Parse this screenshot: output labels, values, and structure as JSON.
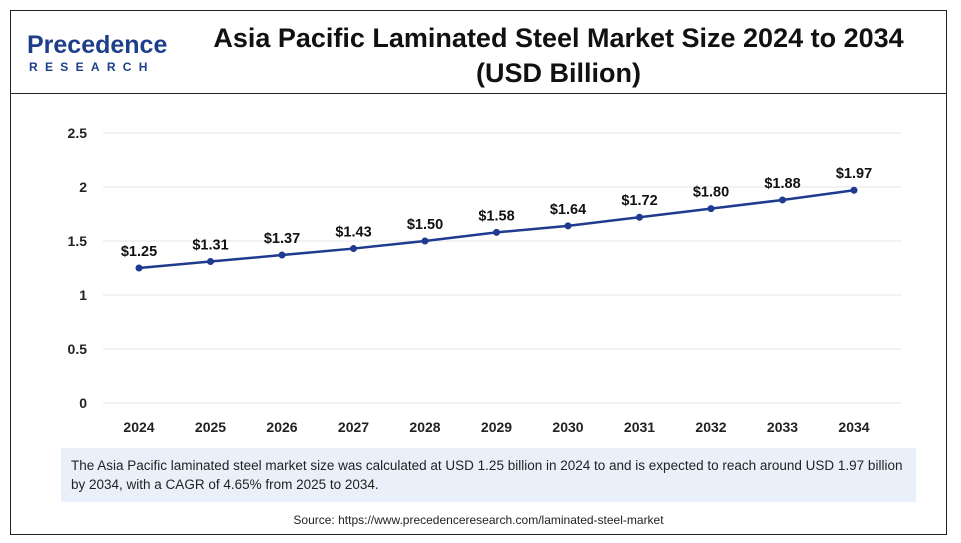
{
  "header": {
    "logo_word": "Precedence",
    "logo_sub": "RESEARCH",
    "title": "Asia Pacific Laminated Steel Market Size 2024 to 2034 (USD Billion)"
  },
  "chart_data": {
    "type": "line",
    "title": "Asia Pacific Laminated Steel Market Size 2024 to 2034 (USD Billion)",
    "xlabel": "",
    "ylabel": "",
    "categories": [
      "2024",
      "2025",
      "2026",
      "2027",
      "2028",
      "2029",
      "2030",
      "2031",
      "2032",
      "2033",
      "2034"
    ],
    "series": [
      {
        "values": [
          1.25,
          1.31,
          1.37,
          1.43,
          1.5,
          1.58,
          1.64,
          1.72,
          1.8,
          1.88,
          1.97
        ]
      }
    ],
    "data_labels": [
      "$1.25",
      "$1.31",
      "$1.37",
      "$1.43",
      "$1.50",
      "$1.58",
      "$1.64",
      "$1.72",
      "$1.80",
      "$1.88",
      "$1.97"
    ],
    "yticks": [
      "0",
      "0.5",
      "1",
      "1.5",
      "2",
      "2.5"
    ],
    "ylim": [
      0,
      2.5
    ],
    "grid": true,
    "line_color": "#1f3a8f"
  },
  "note": "The Asia Pacific laminated steel market size was calculated at USD 1.25 billion in 2024 to and is expected to reach around USD 1.97 billion by 2034, with a CAGR of 4.65% from 2025 to 2034.",
  "source": "Source: https://www.precedenceresearch.com/laminated-steel-market"
}
